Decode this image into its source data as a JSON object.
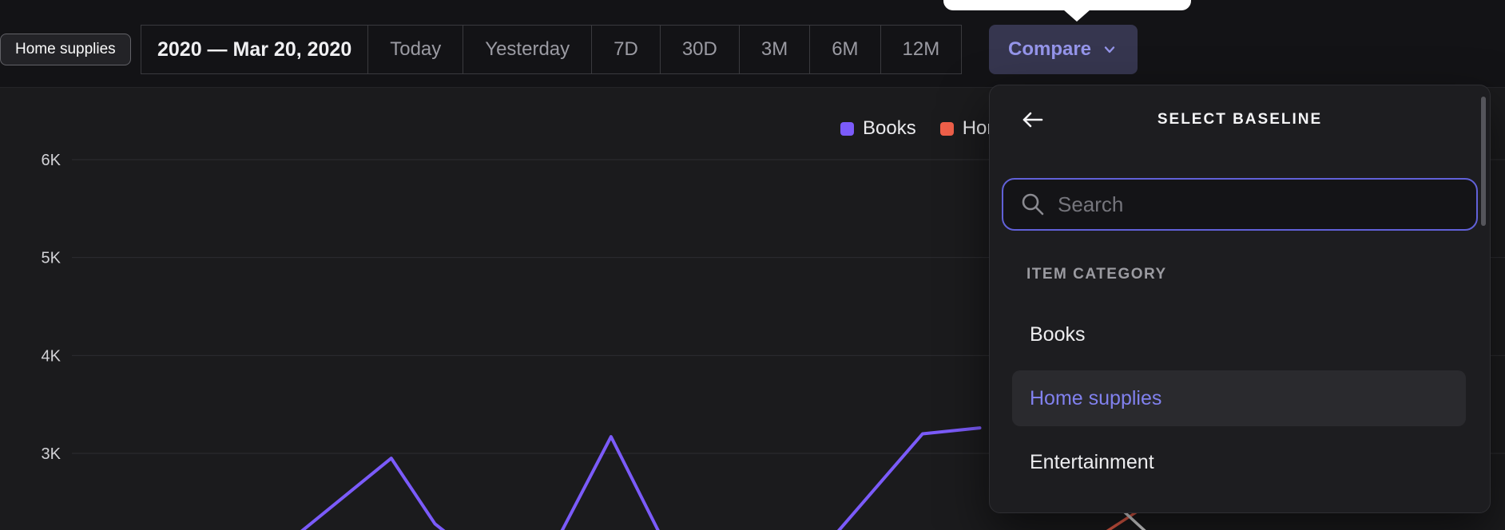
{
  "colors": {
    "accent_purple": "#7b5bfa",
    "accent_orange": "#f0604a",
    "compare_text": "#9595ea",
    "selected_item_text": "#8181ee"
  },
  "tooltip": {
    "label": "Home supplies"
  },
  "toolbar": {
    "date_range": "2020 — Mar 20, 2020",
    "ranges": [
      "Today",
      "Yesterday",
      "7D",
      "30D",
      "3M",
      "6M",
      "12M"
    ],
    "compare_label": "Compare"
  },
  "icons": {
    "compare": "chevron-down-icon",
    "panel_back": "arrow-left-icon",
    "search": "search-icon"
  },
  "legend": {
    "items": [
      {
        "label": "Books",
        "color": "#7b5bfa"
      },
      {
        "label": "Home supplies",
        "color": "#f0604a"
      }
    ]
  },
  "panel": {
    "title": "SELECT BASELINE",
    "search_placeholder": "Search",
    "section_label": "ITEM CATEGORY",
    "items": [
      {
        "label": "Books",
        "selected": false
      },
      {
        "label": "Home supplies",
        "selected": true
      },
      {
        "label": "Entertainment",
        "selected": false
      }
    ]
  },
  "chart_data": {
    "type": "line",
    "title": "",
    "xlabel": "",
    "ylabel": "",
    "grid": true,
    "legend_position": "top-right",
    "ytick_labels": [
      "6K",
      "5K",
      "4K",
      "3K"
    ],
    "ytick_values": [
      6000,
      5000,
      4000,
      3000
    ],
    "ylim": [
      2200,
      6700
    ],
    "xtick_labels": [],
    "series": [
      {
        "name": "Books",
        "color": "#7b5bfa",
        "points": [
          [
            0.2,
            2200
          ],
          [
            0.26,
            2950
          ],
          [
            0.289,
            2280
          ],
          [
            0.308,
            2050
          ],
          [
            0.368,
            2050
          ],
          [
            0.406,
            3170
          ],
          [
            0.441,
            2100
          ],
          [
            0.551,
            2100
          ],
          [
            0.613,
            3200
          ],
          [
            0.651,
            3260
          ]
        ]
      },
      {
        "name": "Home supplies",
        "color": "#f0604a",
        "points": [
          [
            0.72,
            2050
          ],
          [
            0.775,
            2600
          ]
        ]
      },
      {
        "name": "unlabeled-light",
        "color": "#e8e8ea",
        "points": [
          [
            0.733,
            2600
          ],
          [
            0.772,
            2050
          ]
        ]
      }
    ]
  }
}
